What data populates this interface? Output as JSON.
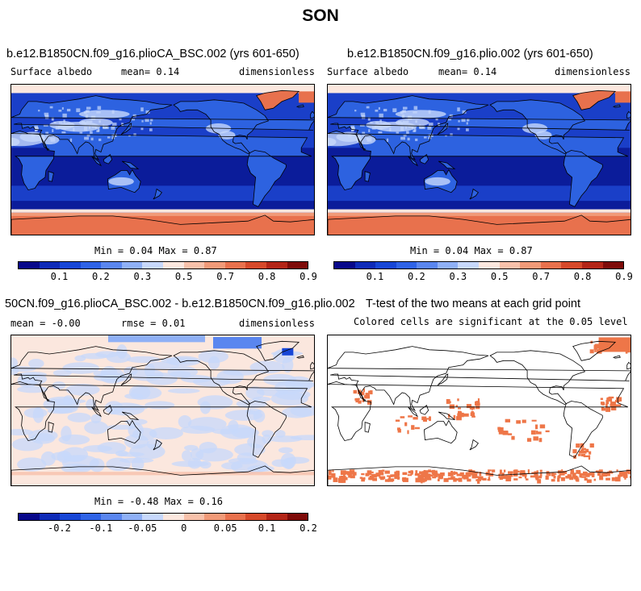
{
  "title": "SON",
  "panels": [
    {
      "title": "b.e12.B1850CN.f09_g16.plioCA_BSC.002 (yrs 601-650)",
      "left_label": "Surface albedo",
      "center_label": "mean=   0.14",
      "right_label": "dimensionless",
      "minmax": "Min =   0.04 Max =   0.87",
      "map_type": "albedo"
    },
    {
      "title": "b.e12.B1850CN.f09_g16.plio.002 (yrs 601-650)",
      "left_label": "Surface albedo",
      "center_label": "mean=   0.14",
      "right_label": "dimensionless",
      "minmax": "Min =   0.04 Max =   0.87",
      "map_type": "albedo"
    },
    {
      "title": "50CN.f09_g16.plioCA_BSC.002 - b.e12.B1850CN.f09_g16.plio.002",
      "left_label": "mean =  -0.00",
      "center_label": "rmse =   0.01",
      "right_label": "dimensionless",
      "minmax": "Min =  -0.48 Max =   0.16",
      "map_type": "difference"
    },
    {
      "title": "T-test of the two means at each grid point",
      "subtitle": "Colored cells are significant at the 0.05 level",
      "map_type": "ttest"
    }
  ],
  "chart_data": [
    {
      "type": "heatmap",
      "title": "b.e12.B1850CN.f09_g16.plioCA_BSC.002 (yrs 601-650)",
      "variable": "Surface albedo",
      "units": "dimensionless",
      "mean": 0.14,
      "min": 0.04,
      "max": 0.87,
      "colorbar_ticks": [
        "0.1",
        "0.2",
        "0.3",
        "0.5",
        "0.7",
        "0.8",
        "0.9"
      ]
    },
    {
      "type": "heatmap",
      "title": "b.e12.B1850CN.f09_g16.plio.002 (yrs 601-650)",
      "variable": "Surface albedo",
      "units": "dimensionless",
      "mean": 0.14,
      "min": 0.04,
      "max": 0.87,
      "colorbar_ticks": [
        "0.1",
        "0.2",
        "0.3",
        "0.5",
        "0.7",
        "0.8",
        "0.9"
      ]
    },
    {
      "type": "heatmap",
      "title": "50CN.f09_g16.plioCA_BSC.002 - b.e12.B1850CN.f09_g16.plio.002",
      "units": "dimensionless",
      "mean": -0.0,
      "rmse": 0.01,
      "min": -0.48,
      "max": 0.16,
      "colorbar_ticks": [
        "-0.2",
        "-0.1",
        "-0.05",
        "0",
        "0.05",
        "0.1",
        "0.2"
      ]
    },
    {
      "type": "heatmap",
      "title": "T-test of the two means at each grid point",
      "subtitle": "Colored cells are significant at the 0.05 level"
    }
  ],
  "colorbars": {
    "albedo": {
      "colors": [
        "#08088a",
        "#0f2bb8",
        "#1746d6",
        "#2f63e6",
        "#5a86ef",
        "#8fb0f6",
        "#c7d8fb",
        "#fbe7de",
        "#f7c1aa",
        "#f19a78",
        "#e8714d",
        "#d6492a",
        "#b32517",
        "#7e0b09"
      ],
      "ticks": [
        "0.1",
        "0.2",
        "0.3",
        "0.5",
        "0.7",
        "0.8",
        "0.9"
      ]
    },
    "difference": {
      "colors": [
        "#08088a",
        "#0f2bb8",
        "#1746d6",
        "#2f63e6",
        "#5a86ef",
        "#8fb0f6",
        "#c7d8fb",
        "#fbe7de",
        "#f7c1aa",
        "#f19a78",
        "#e8714d",
        "#d6492a",
        "#b32517",
        "#7e0b09"
      ],
      "ticks": [
        "-0.2",
        "-0.1",
        "-0.05",
        "0",
        "0.05",
        "0.1",
        "0.2"
      ]
    }
  },
  "colors": {
    "ocean_deep": "#0b1c9a",
    "ocean": "#1a3fc8",
    "land": "#2d62e0",
    "snow": "#c7d8fb",
    "ice_high": "#e8714d",
    "ice_mid": "#f19a78",
    "ice_light": "#fbe7de",
    "diff_base": "#fbe7de",
    "diff_blue": "#c7d8fb",
    "sig": "#ee7648"
  }
}
